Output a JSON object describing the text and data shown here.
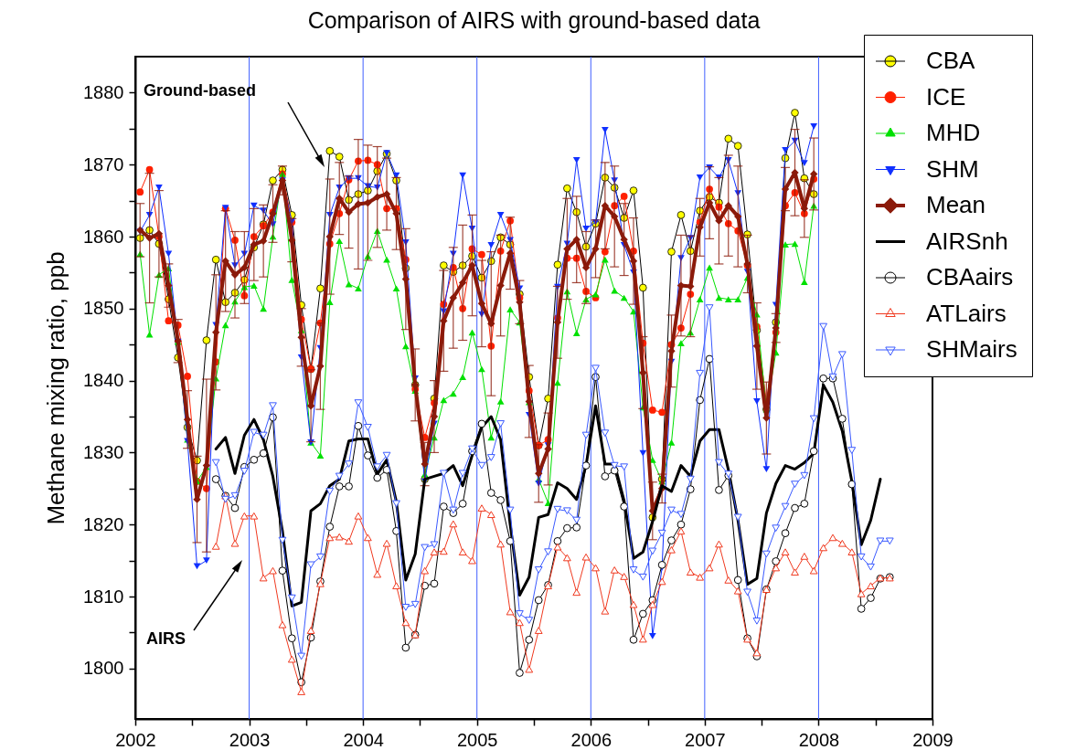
{
  "chart_data": {
    "type": "line",
    "title": "Comparison of AIRS with ground-based data",
    "ylabel": "Methane mixing ratio, ppb",
    "x": [
      2002.042,
      2002.125,
      2002.208,
      2002.292,
      2002.375,
      2002.458,
      2002.542,
      2002.625,
      2002.708,
      2002.792,
      2002.875,
      2002.958,
      2003.042,
      2003.125,
      2003.208,
      2003.292,
      2003.375,
      2003.458,
      2003.542,
      2003.625,
      2003.708,
      2003.792,
      2003.875,
      2003.958,
      2004.042,
      2004.125,
      2004.208,
      2004.292,
      2004.375,
      2004.458,
      2004.542,
      2004.625,
      2004.708,
      2004.792,
      2004.875,
      2004.958,
      2005.042,
      2005.125,
      2005.208,
      2005.292,
      2005.375,
      2005.458,
      2005.542,
      2005.625,
      2005.708,
      2005.792,
      2005.875,
      2005.958,
      2006.042,
      2006.125,
      2006.208,
      2006.292,
      2006.375,
      2006.458,
      2006.542,
      2006.625,
      2006.708,
      2006.792,
      2006.875,
      2006.958,
      2007.042,
      2007.125,
      2007.208,
      2007.292,
      2007.375,
      2007.458,
      2007.542,
      2007.625,
      2007.708,
      2007.792,
      2007.875,
      2007.958,
      2008.042,
      2008.125,
      2008.208,
      2008.292,
      2008.375,
      2008.458,
      2008.542,
      2008.625
    ],
    "series": [
      {
        "name": "CBA",
        "color": "#ffff00",
        "marker": "circle",
        "values": [
          1859.8,
          1860.9,
          1859,
          1851.3,
          1843.2,
          1833.5,
          1828.9,
          1845.6,
          1856.8,
          1850.9,
          1852.2,
          1854,
          1858.5,
          1861.7,
          1867.8,
          1869.3,
          1863,
          1850.5,
          1841.6,
          1852.8,
          1871.9,
          1871.1,
          1865.1,
          1865.9,
          1866.4,
          1869.1,
          1871.5,
          1867.8,
          1855.6,
          1839.4,
          1826.3,
          1837.5,
          1856,
          1855.1,
          1856,
          1857.3,
          1854.3,
          1856.6,
          1859.9,
          1858.9,
          1852,
          1840.5,
          1831,
          1837.5,
          1856.1,
          1866.7,
          1863.4,
          1858.6,
          1861.8,
          1868.2,
          1866.8,
          1862.6,
          1866.4,
          1852.9,
          1821,
          1826.3,
          1857.9,
          1863,
          1858,
          1863.6,
          1865.5,
          1864.7,
          1873.6,
          1872.6,
          1860.3,
          1847,
          1836,
          1848.1,
          1870.9,
          1877.2,
          1868.1,
          1865.9,
          null,
          null,
          null,
          null,
          null,
          null,
          null,
          null
        ]
      },
      {
        "name": "ICE",
        "color": "#ff2000",
        "marker": "circle",
        "values": [
          1866.2,
          1869.3,
          1860,
          1848.3,
          1847.7,
          1840.6,
          1826,
          1825,
          1842.6,
          1863.9,
          1859.5,
          1851.8,
          1860,
          1861.5,
          1863.4,
          1868.7,
          1862,
          1848.5,
          1841.6,
          1848,
          1859,
          1863.2,
          1867.9,
          1870.5,
          1870.6,
          1870,
          1863.9,
          1863.9,
          1856.8,
          1838.8,
          1832.1,
          1836.9,
          1850.6,
          1855.7,
          1850,
          1858.3,
          1857.5,
          1844.8,
          1858,
          1862.2,
          1851.5,
          1838.6,
          1831,
          1831.8,
          1848.7,
          1857,
          1857,
          1852.4,
          1851.5,
          1857.9,
          1864.3,
          1865.6,
          1858,
          1845.2,
          1835.9,
          1835.6,
          1845,
          1847.3,
          1852,
          1862,
          1866.6,
          1864.1,
          1861.8,
          1860.8,
          1856,
          1847.5,
          1837,
          1846.7,
          1864.3,
          1866.1,
          1863.2,
          1868,
          null,
          null,
          null,
          null,
          null,
          null,
          null,
          null
        ]
      },
      {
        "name": "MHD",
        "color": "#00e000",
        "marker": "triangle",
        "values": [
          1857.6,
          1846.4,
          1854.7,
          1855.6,
          1845.4,
          1831.8,
          1826,
          1828,
          1840.3,
          1847.7,
          1851,
          1853,
          1853.2,
          1850,
          1860,
          1868.7,
          1854,
          1847,
          1831.4,
          1829.6,
          1850.9,
          1859.4,
          1853.4,
          1852.8,
          1857.3,
          1860.8,
          1856.8,
          1852.8,
          1844.8,
          1838.6,
          1827,
          1832.1,
          1837.3,
          1838.2,
          1840.5,
          1846.7,
          1841.6,
          1832.1,
          1837.1,
          1849.9,
          1848.1,
          1837,
          1826.3,
          1823,
          1839.7,
          1852.4,
          1846.6,
          1851.3,
          1852,
          1856.8,
          1852.5,
          1851.5,
          1849.6,
          1836.3,
          1829,
          1826,
          1831.4,
          1845.2,
          1846.7,
          1851.3,
          1855.7,
          1851.5,
          1851.3,
          1851.3,
          1854.3,
          1849.2,
          1836,
          1843.9,
          1858.9,
          1859,
          1853.7,
          1864.3,
          null,
          null,
          null,
          null,
          null,
          null,
          null,
          null
        ]
      },
      {
        "name": "SHM",
        "color": "#1030ff",
        "marker": "triangle-down",
        "values": [
          1860.7,
          1863,
          1866.8,
          1857.6,
          1845.4,
          1831.6,
          1814.2,
          1815,
          1847.7,
          1864,
          1856,
          1857.6,
          1864.3,
          1863.6,
          1861.7,
          1867.8,
          1862.1,
          1843.2,
          1831.4,
          1844.5,
          1863,
          1866.8,
          1868.1,
          1868.1,
          1867,
          1866.8,
          1871.6,
          1868.5,
          1859.2,
          1840.3,
          1826,
          1834,
          1849.6,
          1857.6,
          1868.5,
          1861.1,
          1849.2,
          1858.8,
          1863,
          1859.5,
          1852.8,
          1835.2,
          1825.7,
          1831,
          1853,
          1859,
          1870.6,
          1861.1,
          1862,
          1874.8,
          1867.8,
          1858.8,
          1855,
          1829.9,
          1804.5,
          1814,
          1842.6,
          1857,
          1859.8,
          1868.2,
          1869.6,
          1868.2,
          1870.6,
          1866,
          1855.1,
          1837.1,
          1827.7,
          1850.5,
          1872,
          1873.3,
          1870.2,
          1875.3,
          null,
          null,
          null,
          null,
          null,
          null,
          null,
          null
        ]
      },
      {
        "name": "Mean",
        "color": "#8b1a0a",
        "marker": "diamond",
        "values": [
          1860.9,
          1859.8,
          1860.4,
          1853.2,
          1845.5,
          1834.6,
          1823.5,
          1828.2,
          1846.7,
          1856.6,
          1854.7,
          1855.7,
          1858.9,
          1859.4,
          1863.2,
          1867.8,
          1859.5,
          1846,
          1836.5,
          1842,
          1860,
          1865.3,
          1863.4,
          1864.5,
          1864.7,
          1865.5,
          1865.9,
          1863.2,
          1854.1,
          1839.4,
          1828.4,
          1835,
          1848.3,
          1851.5,
          1853.6,
          1856,
          1850.7,
          1847.9,
          1853.2,
          1857.7,
          1850.9,
          1837.1,
          1827.1,
          1830.5,
          1848.1,
          1858.3,
          1859.6,
          1855.7,
          1858.3,
          1864.3,
          1862.8,
          1859.6,
          1856.6,
          1841.1,
          1821.9,
          1825,
          1844.1,
          1853.2,
          1853.1,
          1861.3,
          1864.7,
          1862.2,
          1864.3,
          1862.8,
          1856.2,
          1844.8,
          1834.8,
          1847.3,
          1866.6,
          1868.9,
          1863.9,
          1868.7,
          null,
          null,
          null,
          null,
          null,
          null,
          null,
          null
        ],
        "errors": [
          3.7,
          9,
          6,
          3,
          3,
          4,
          6,
          12,
          8,
          7,
          6,
          5,
          5,
          5,
          4,
          2,
          3,
          4,
          5,
          6,
          8,
          5,
          5,
          9,
          8,
          7,
          5,
          5,
          7,
          5,
          3,
          5,
          7,
          7,
          8,
          7,
          6,
          10,
          7,
          5,
          3,
          5,
          4,
          5,
          5,
          7,
          6,
          5,
          4,
          6,
          7,
          5,
          6,
          5,
          4,
          2,
          5,
          7,
          7,
          4,
          5,
          6,
          7,
          7,
          4,
          6,
          5,
          2,
          3,
          6,
          4,
          5,
          null,
          null,
          null,
          null,
          null,
          null,
          null,
          null
        ]
      },
      {
        "name": "AIRSnh",
        "color": "#000000",
        "marker": "none",
        "values": [
          null,
          null,
          null,
          null,
          null,
          null,
          null,
          null,
          1830.5,
          1832.1,
          1827.1,
          1832.4,
          1834.6,
          1831.8,
          1826.7,
          1819.1,
          1808.7,
          1809.2,
          1821.9,
          1822.9,
          1825.4,
          1826.3,
          1831.6,
          1831.9,
          1831.9,
          1827,
          1829,
          1823.2,
          1812.3,
          1815.9,
          1826.3,
          1826.7,
          1827.1,
          1828.2,
          1825.4,
          1829.6,
          1833.5,
          1835,
          1831.8,
          1820,
          1810.2,
          1812.7,
          1821,
          1821.4,
          1825.8,
          1825,
          1823.5,
          1828.2,
          1836.5,
          1828.4,
          1828.4,
          1823.3,
          1815.3,
          1816.2,
          1820.4,
          1825.4,
          1824.6,
          1828.2,
          1826.7,
          1831.6,
          1833.2,
          1833.2,
          1827.6,
          1820.6,
          1811.7,
          1812.5,
          1821.6,
          1825.7,
          1828.2,
          1827.7,
          1828.6,
          1829.9,
          1839.4,
          1837,
          1833,
          1826,
          1817.2,
          1820.6,
          1826.3,
          null
        ]
      },
      {
        "name": "CBAairs",
        "color": "#000000",
        "marker": "circle-open",
        "values": [
          null,
          null,
          null,
          null,
          null,
          null,
          null,
          null,
          1826.3,
          1824,
          1822.3,
          1828,
          1829,
          1829.9,
          1834.9,
          1813.6,
          1804.2,
          1798.1,
          1804.3,
          1812.1,
          1819.7,
          1825.3,
          1825.3,
          1833.7,
          1829.6,
          1826.5,
          1827.6,
          1819.1,
          1802.9,
          1804.7,
          1811.5,
          1811.8,
          1822.5,
          1821.6,
          1822.9,
          1830.2,
          1834,
          1824.4,
          1823.4,
          1817.7,
          1799.4,
          1804,
          1809.5,
          1811.6,
          1817.7,
          1819.5,
          1819.6,
          1828.2,
          1840.5,
          1826.7,
          1827.5,
          1822.5,
          1804,
          1807.6,
          1809.5,
          1814.4,
          1817.8,
          1820,
          1824.9,
          1837.3,
          1843,
          1824.8,
          1826.8,
          1812.3,
          1804.2,
          1801.7,
          1811,
          1814.9,
          1818.8,
          1822.3,
          1822.9,
          1830.2,
          1840.3,
          1840.3,
          1834.7,
          1825.6,
          1808.3,
          1809.8,
          1812.5,
          1812.7
        ]
      },
      {
        "name": "ATLairs",
        "color": "#f03a20",
        "marker": "triangle-open",
        "values": [
          null,
          null,
          null,
          null,
          null,
          null,
          null,
          null,
          1817,
          1824,
          1817.4,
          1821.2,
          1821.2,
          1812.6,
          1813.6,
          1806.1,
          1801.3,
          1796.8,
          1805.3,
          1811.8,
          1818.2,
          1818.3,
          1817.7,
          1821.2,
          1818.2,
          1813.1,
          1817.4,
          1811.5,
          1806.4,
          1804.7,
          1813.6,
          1816.2,
          1816.3,
          1820.1,
          1816.2,
          1815,
          1822.3,
          1821.4,
          1817.3,
          1807.9,
          1806.4,
          1799.9,
          1805.3,
          1811.5,
          1816.9,
          1815.4,
          1810.6,
          1815.5,
          1814,
          1808,
          1813.7,
          1812.8,
          1808.9,
          1804.1,
          1808.9,
          1812.1,
          1816.5,
          1819.1,
          1813.4,
          1812.7,
          1814,
          1817.3,
          1812.3,
          1810.8,
          1804.1,
          1802.2,
          1811,
          1814,
          1816.2,
          1813.4,
          1815.6,
          1813.6,
          1816.8,
          1818.2,
          1817.4,
          1816.2,
          1810.4,
          1811.5,
          1812.6,
          1812.6
        ]
      },
      {
        "name": "SHMairs",
        "color": "#3a5aff",
        "marker": "triangle-down-open",
        "values": [
          null,
          null,
          null,
          null,
          null,
          null,
          null,
          null,
          1828.6,
          1823.5,
          1824,
          1827.4,
          1832.8,
          1832.4,
          1836.5,
          1817.8,
          1809.8,
          1801.7,
          1814.4,
          1815.5,
          1824.6,
          1826.7,
          1828.4,
          1836.9,
          1833.5,
          1828,
          1829.6,
          1822.9,
          1808.5,
          1808.9,
          1816.8,
          1817.2,
          1827.1,
          1822,
          1827.1,
          1830.5,
          1828.2,
          1829.3,
          1834,
          1822,
          1807.6,
          1806.7,
          1813.7,
          1816.2,
          1822.1,
          1821.9,
          1820.6,
          1832.4,
          1841.7,
          1832.7,
          1828.2,
          1828,
          1813.7,
          1812.7,
          1816.3,
          1818.8,
          1822,
          1821.4,
          1826.3,
          1841,
          1850.1,
          1828.6,
          1827,
          1821,
          1810.6,
          1806.6,
          1815.9,
          1819.5,
          1822.5,
          1825.6,
          1826.8,
          1834.7,
          1847.5,
          1840.5,
          1843.6,
          1830.3,
          1815.5,
          1814.1,
          1817.7,
          1817.7
        ]
      }
    ],
    "xlim": [
      2002,
      2009
    ],
    "xticks": [
      2002,
      {
        "value": 2002.5,
        "label": null
      },
      2003,
      {
        "value": 2003.5,
        "label": null
      },
      2004,
      {
        "value": 2004.5,
        "label": null
      },
      2005,
      {
        "value": 2005.5,
        "label": null
      },
      2006,
      {
        "value": 2006.5,
        "label": null
      },
      2007,
      {
        "value": 2007.5,
        "label": null
      },
      2008,
      {
        "value": 2008.5,
        "label": null
      },
      2009
    ],
    "ylim": [
      1793,
      1885
    ],
    "yticks": [
      1800,
      {
        "value": 1805,
        "label": null
      },
      1810,
      {
        "value": 1815,
        "label": null
      },
      1820,
      {
        "value": 1825,
        "label": null
      },
      1830,
      {
        "value": 1835,
        "label": null
      },
      1840,
      {
        "value": 1845,
        "label": null
      },
      1850,
      {
        "value": 1855,
        "label": null
      },
      1860,
      {
        "value": 1865,
        "label": null
      },
      1870,
      {
        "value": 1875,
        "label": null
      },
      1880
    ],
    "ref_lines": [
      {
        "axis": "x",
        "value": 2003,
        "color": "#4060ff"
      },
      {
        "axis": "x",
        "value": 2004,
        "color": "#4060ff"
      },
      {
        "axis": "x",
        "value": 2005,
        "color": "#4060ff"
      },
      {
        "axis": "x",
        "value": 2006,
        "color": "#4060ff"
      },
      {
        "axis": "x",
        "value": 2007,
        "color": "#4060ff"
      },
      {
        "axis": "x",
        "value": 2008,
        "color": "#4060ff"
      }
    ],
    "annotations": [
      "Ground-based",
      "AIRS"
    ],
    "legend": "top right"
  }
}
